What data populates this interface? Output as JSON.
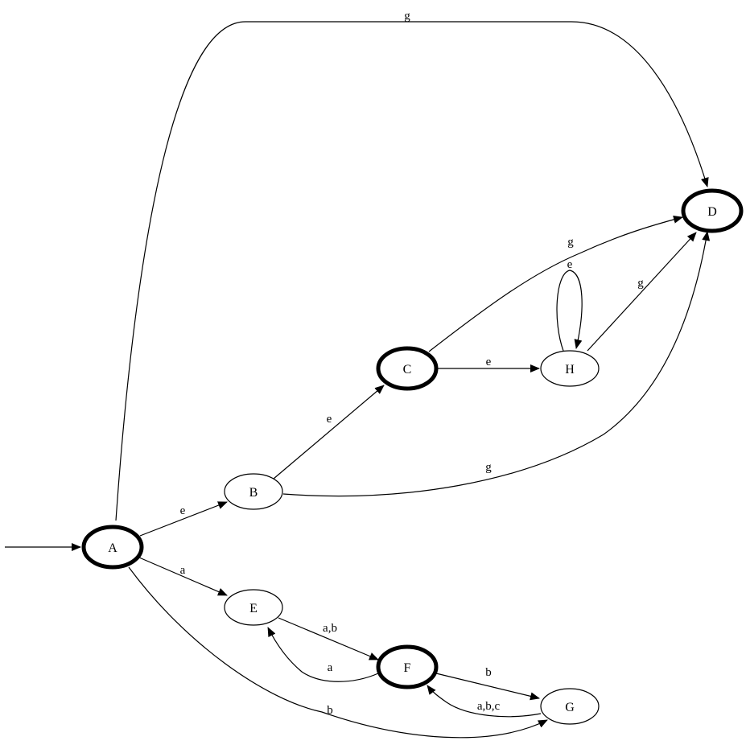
{
  "nodes": [
    {
      "id": "A",
      "label": "A",
      "accepting": true,
      "initial": true
    },
    {
      "id": "B",
      "label": "B",
      "accepting": false
    },
    {
      "id": "C",
      "label": "C",
      "accepting": true
    },
    {
      "id": "D",
      "label": "D",
      "accepting": true
    },
    {
      "id": "E",
      "label": "E",
      "accepting": false
    },
    {
      "id": "F",
      "label": "F",
      "accepting": true
    },
    {
      "id": "G",
      "label": "G",
      "accepting": false
    },
    {
      "id": "H",
      "label": "H",
      "accepting": false
    }
  ],
  "edges": [
    {
      "id": "A-D",
      "from": "A",
      "to": "D",
      "label": "g"
    },
    {
      "id": "A-B",
      "from": "A",
      "to": "B",
      "label": "e"
    },
    {
      "id": "A-E",
      "from": "A",
      "to": "E",
      "label": "a"
    },
    {
      "id": "A-G",
      "from": "A",
      "to": "G",
      "label": "b"
    },
    {
      "id": "B-C",
      "from": "B",
      "to": "C",
      "label": "e"
    },
    {
      "id": "B-D",
      "from": "B",
      "to": "D",
      "label": "g"
    },
    {
      "id": "C-D",
      "from": "C",
      "to": "D",
      "label": "g"
    },
    {
      "id": "C-H",
      "from": "C",
      "to": "H",
      "label": "e"
    },
    {
      "id": "H-H",
      "from": "H",
      "to": "H",
      "label": "e"
    },
    {
      "id": "H-D",
      "from": "H",
      "to": "D",
      "label": "g"
    },
    {
      "id": "E-F",
      "from": "E",
      "to": "F",
      "label": "a,b"
    },
    {
      "id": "F-E",
      "from": "F",
      "to": "E",
      "label": "a"
    },
    {
      "id": "F-G",
      "from": "F",
      "to": "G",
      "label": "b"
    },
    {
      "id": "G-F",
      "from": "G",
      "to": "F",
      "label": "a,b,c"
    }
  ]
}
